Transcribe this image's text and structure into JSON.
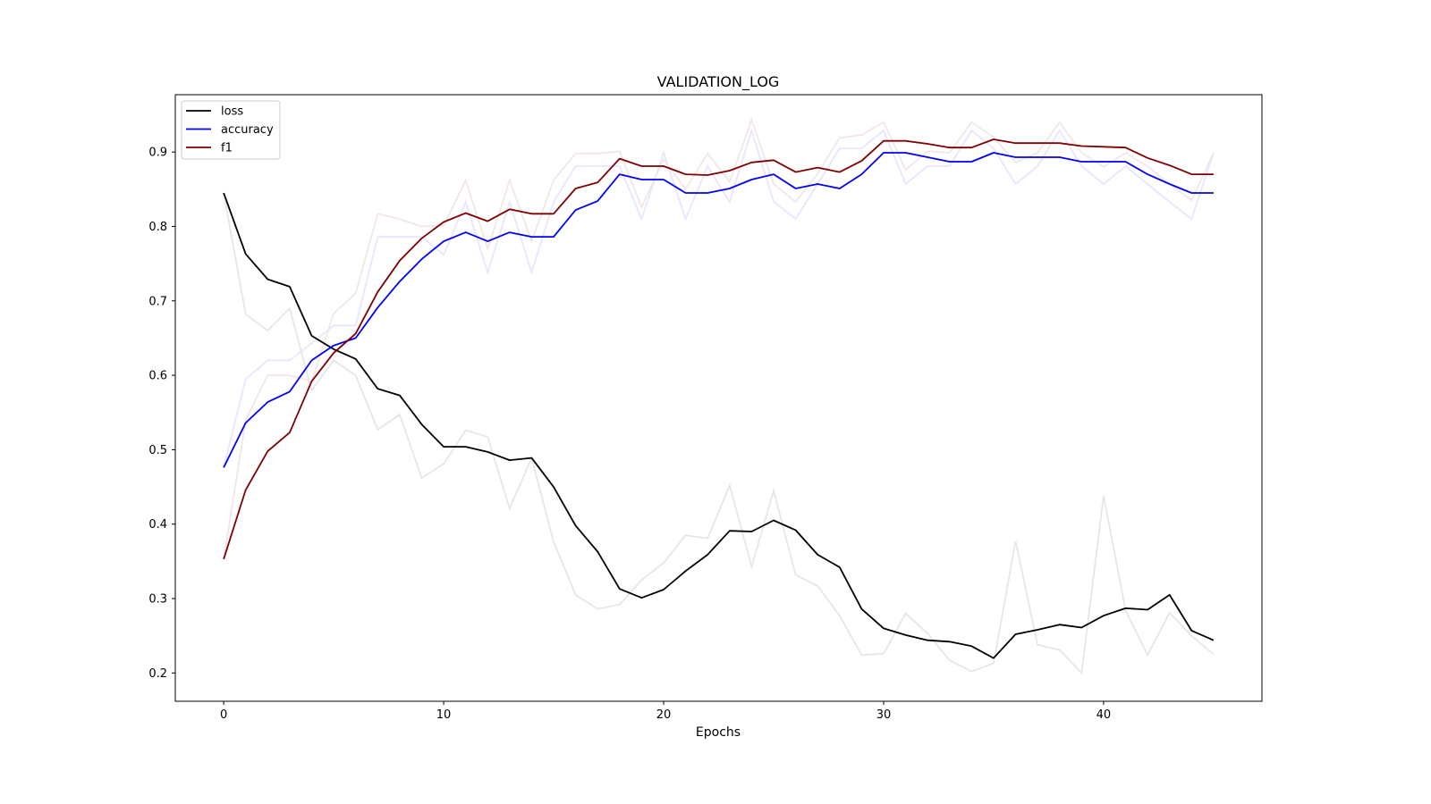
{
  "chart_data": {
    "type": "line",
    "title": "VALIDATION_LOG",
    "xlabel": "Epochs",
    "ylabel": "",
    "xlim": [
      -2.2,
      47.2
    ],
    "ylim": [
      0.162,
      0.977
    ],
    "xticks": [
      0,
      10,
      20,
      30,
      40
    ],
    "yticks": [
      0.2,
      0.3,
      0.4,
      0.5,
      0.6,
      0.7,
      0.8,
      0.9
    ],
    "grid": false,
    "legend_position": "upper-left",
    "x": [
      0,
      1,
      2,
      3,
      4,
      5,
      6,
      7,
      8,
      9,
      10,
      11,
      12,
      13,
      14,
      15,
      16,
      17,
      18,
      19,
      20,
      21,
      22,
      23,
      24,
      25,
      26,
      27,
      28,
      29,
      30,
      31,
      32,
      33,
      34,
      35,
      36,
      37,
      38,
      39,
      40,
      41,
      42,
      43,
      44,
      45
    ],
    "series": [
      {
        "name": "loss",
        "color": "#000000",
        "values": [
          0.845,
          0.763,
          0.729,
          0.719,
          0.653,
          0.635,
          0.622,
          0.582,
          0.573,
          0.534,
          0.504,
          0.504,
          0.497,
          0.486,
          0.489,
          0.45,
          0.398,
          0.363,
          0.313,
          0.301,
          0.312,
          0.337,
          0.359,
          0.391,
          0.39,
          0.405,
          0.392,
          0.359,
          0.342,
          0.286,
          0.26,
          0.251,
          0.244,
          0.242,
          0.236,
          0.22,
          0.252,
          0.258,
          0.265,
          0.261,
          0.277,
          0.287,
          0.285,
          0.305,
          0.257,
          0.244
        ]
      },
      {
        "name": "accuracy",
        "color": "#0000ff",
        "values": [
          0.476,
          0.536,
          0.564,
          0.578,
          0.62,
          0.64,
          0.65,
          0.691,
          0.726,
          0.756,
          0.78,
          0.792,
          0.78,
          0.792,
          0.786,
          0.786,
          0.822,
          0.834,
          0.87,
          0.863,
          0.863,
          0.845,
          0.845,
          0.851,
          0.863,
          0.87,
          0.851,
          0.857,
          0.851,
          0.87,
          0.899,
          0.899,
          0.893,
          0.887,
          0.887,
          0.899,
          0.893,
          0.893,
          0.893,
          0.887,
          0.887,
          0.887,
          0.87,
          0.857,
          0.845,
          0.845
        ]
      },
      {
        "name": "f1",
        "color": "#800000",
        "values": [
          0.353,
          0.446,
          0.498,
          0.523,
          0.592,
          0.63,
          0.656,
          0.712,
          0.754,
          0.784,
          0.806,
          0.818,
          0.807,
          0.823,
          0.817,
          0.817,
          0.851,
          0.859,
          0.891,
          0.881,
          0.881,
          0.87,
          0.869,
          0.875,
          0.886,
          0.889,
          0.873,
          0.879,
          0.873,
          0.888,
          0.915,
          0.915,
          0.911,
          0.906,
          0.906,
          0.917,
          0.912,
          0.912,
          0.912,
          0.908,
          0.907,
          0.906,
          0.892,
          0.882,
          0.87,
          0.87
        ]
      }
    ],
    "raw_series": [
      {
        "of": "loss",
        "color": "#e6e6e6",
        "values": [
          0.845,
          0.682,
          0.66,
          0.69,
          0.58,
          0.62,
          0.6,
          0.527,
          0.547,
          0.462,
          0.481,
          0.526,
          0.517,
          0.421,
          0.489,
          0.376,
          0.305,
          0.286,
          0.292,
          0.325,
          0.348,
          0.385,
          0.381,
          0.452,
          0.343,
          0.445,
          0.332,
          0.317,
          0.277,
          0.224,
          0.226,
          0.28,
          0.253,
          0.217,
          0.202,
          0.213,
          0.377,
          0.238,
          0.231,
          0.2,
          0.438,
          0.284,
          0.224,
          0.281,
          0.25,
          0.225
        ]
      },
      {
        "of": "accuracy",
        "color": "#e6e6ff",
        "values": [
          0.476,
          0.595,
          0.62,
          0.62,
          0.643,
          0.667,
          0.667,
          0.786,
          0.786,
          0.786,
          0.762,
          0.833,
          0.738,
          0.833,
          0.738,
          0.833,
          0.881,
          0.881,
          0.881,
          0.81,
          0.899,
          0.81,
          0.881,
          0.833,
          0.929,
          0.833,
          0.81,
          0.857,
          0.905,
          0.905,
          0.929,
          0.857,
          0.881,
          0.881,
          0.929,
          0.905,
          0.857,
          0.881,
          0.929,
          0.881,
          0.857,
          0.881,
          0.857,
          0.833,
          0.81,
          0.899
        ]
      },
      {
        "of": "f1",
        "color": "#f2e6e6",
        "values": [
          0.353,
          0.54,
          0.6,
          0.6,
          0.592,
          0.683,
          0.71,
          0.817,
          0.81,
          0.8,
          0.801,
          0.862,
          0.77,
          0.862,
          0.78,
          0.862,
          0.898,
          0.898,
          0.901,
          0.826,
          0.89,
          0.85,
          0.898,
          0.86,
          0.943,
          0.857,
          0.833,
          0.871,
          0.919,
          0.923,
          0.94,
          0.876,
          0.901,
          0.899,
          0.94,
          0.92,
          0.886,
          0.899,
          0.94,
          0.899,
          0.88,
          0.899,
          0.881,
          0.857,
          0.835,
          0.899
        ]
      }
    ]
  }
}
